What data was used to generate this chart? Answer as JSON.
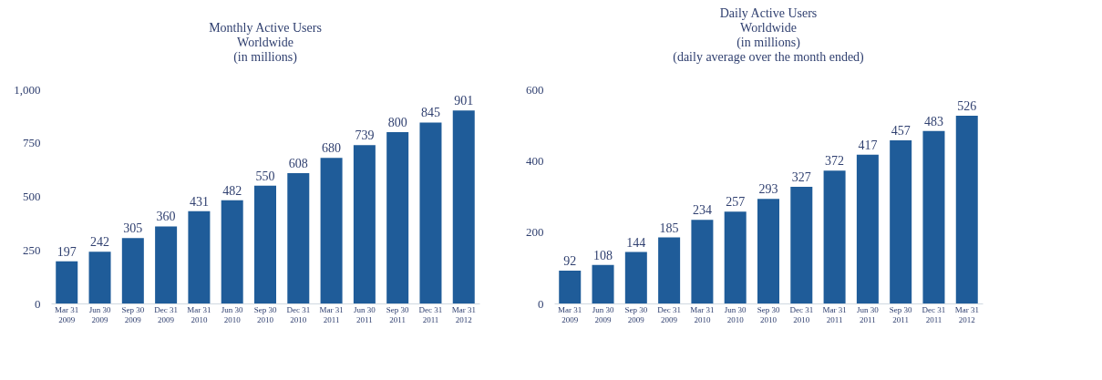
{
  "chart_data": [
    {
      "type": "bar",
      "title": "Monthly Active Users\nWorldwide\n(in millions)",
      "categories": [
        "Mar 31\n2009",
        "Jun 30\n2009",
        "Sep 30\n2009",
        "Dec 31\n2009",
        "Mar 31\n2010",
        "Jun 30\n2010",
        "Sep 30\n2010",
        "Dec 31\n2010",
        "Mar 31\n2011",
        "Jun 30\n2011",
        "Sep 30\n2011",
        "Dec 31\n2011",
        "Mar 31\n2012"
      ],
      "values": [
        197,
        242,
        305,
        360,
        431,
        482,
        550,
        608,
        680,
        739,
        800,
        845,
        901
      ],
      "color": "#1f5c99",
      "ylim": [
        0,
        1000
      ],
      "yticks": [
        0,
        250,
        500,
        750,
        {
          "value": 1000,
          "label": "1,000"
        }
      ],
      "data_labels": true,
      "grid": false
    },
    {
      "type": "bar",
      "title": "Daily Active Users\nWorldwide\n(in millions)\n(daily average over the month ended)",
      "categories": [
        "Mar 31\n2009",
        "Jun 30\n2009",
        "Sep 30\n2009",
        "Dec 31\n2009",
        "Mar 31\n2010",
        "Jun 30\n2010",
        "Sep 30\n2010",
        "Dec 31\n2010",
        "Mar 31\n2011",
        "Jun 30\n2011",
        "Sep 30\n2011",
        "Dec 31\n2011",
        "Mar 31\n2012"
      ],
      "values": [
        92,
        108,
        144,
        185,
        234,
        257,
        293,
        327,
        372,
        417,
        457,
        483,
        526
      ],
      "color": "#1f5c99",
      "ylim": [
        0,
        600
      ],
      "yticks": [
        0,
        200,
        400,
        600
      ],
      "data_labels": true,
      "grid": false
    }
  ]
}
